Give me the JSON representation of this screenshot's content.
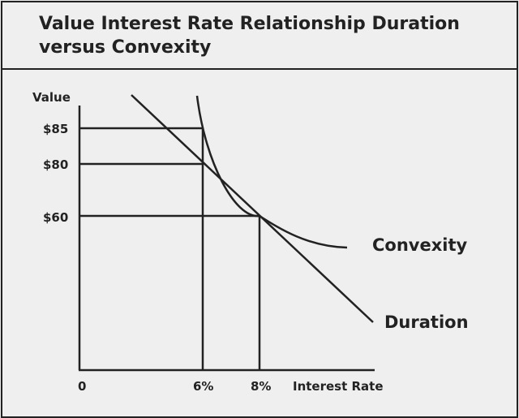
{
  "title": "Value Interest Rate Relationship Duration versus Convexity",
  "axes": {
    "y_label": "Value",
    "x_label": "Interest Rate",
    "origin_label": "0"
  },
  "y_ticks": [
    "$85",
    "$80",
    "$60"
  ],
  "x_ticks": [
    "6%",
    "8%"
  ],
  "curves": {
    "convexity_label": "Convexity",
    "duration_label": "Duration"
  },
  "colors": {
    "background": "#efefef",
    "ink": "#222222"
  }
}
